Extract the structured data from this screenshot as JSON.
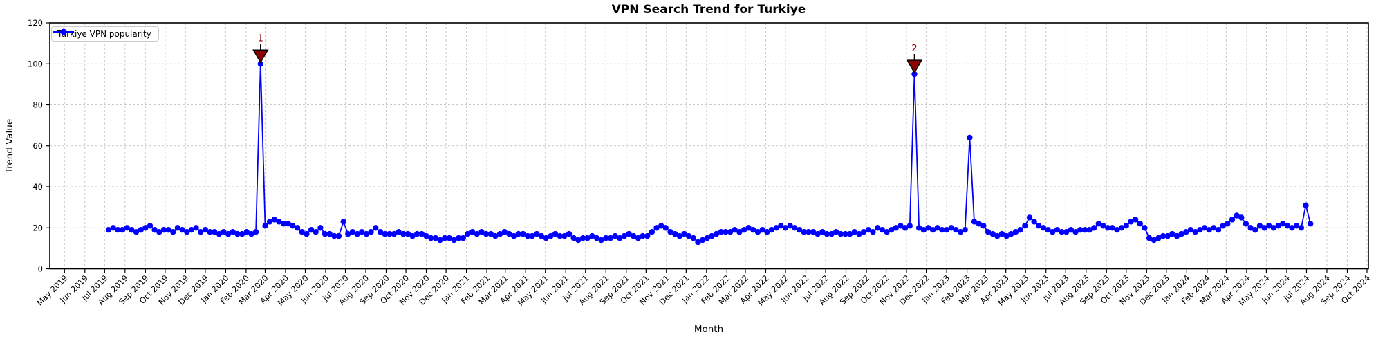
{
  "chart_data": {
    "type": "line",
    "title": "VPN Search Trend for Turkiye",
    "xlabel": "Month",
    "ylabel": "Trend Value",
    "ylim": [
      0,
      120
    ],
    "yticks": [
      0,
      20,
      40,
      60,
      80,
      100,
      120
    ],
    "grid": "dashed",
    "x_tick_labels": [
      "May 2019",
      "Jun 2019",
      "Jul 2019",
      "Aug 2019",
      "Sep 2019",
      "Oct 2019",
      "Nov 2019",
      "Dec 2019",
      "Jan 2020",
      "Feb 2020",
      "Mar 2020",
      "Apr 2020",
      "May 2020",
      "Jun 2020",
      "Jul 2020",
      "Aug 2020",
      "Sep 2020",
      "Oct 2020",
      "Nov 2020",
      "Dec 2020",
      "Jan 2021",
      "Feb 2021",
      "Mar 2021",
      "Apr 2021",
      "May 2021",
      "Jun 2021",
      "Jul 2021",
      "Aug 2021",
      "Sep 2021",
      "Oct 2021",
      "Nov 2021",
      "Dec 2021",
      "Jan 2022",
      "Feb 2022",
      "Mar 2022",
      "Apr 2022",
      "May 2022",
      "Jun 2022",
      "Jul 2022",
      "Aug 2022",
      "Sep 2022",
      "Oct 2022",
      "Nov 2022",
      "Dec 2022",
      "Jan 2023",
      "Feb 2023",
      "Mar 2023",
      "Apr 2023",
      "May 2023",
      "Jun 2023",
      "Jul 2023",
      "Aug 2023",
      "Sep 2023",
      "Oct 2023",
      "Nov 2023",
      "Dec 2023",
      "Jan 2024",
      "Feb 2024",
      "Mar 2024",
      "Apr 2024",
      "May 2024",
      "Jun 2024",
      "Jul 2024",
      "Aug 2024",
      "Sep 2024",
      "Oct 2024"
    ],
    "legend": {
      "position": "upper left",
      "entries": [
        {
          "label": "Turkiye VPN popularity",
          "color": "#0000ff",
          "marker": "circle"
        }
      ]
    },
    "series": [
      {
        "name": "Turkiye VPN popularity",
        "color": "#0000ff",
        "start_date": "2019-07-07",
        "interval_days": 7,
        "values": [
          19,
          20,
          19,
          19,
          20,
          19,
          18,
          19,
          20,
          21,
          19,
          18,
          19,
          19,
          18,
          20,
          19,
          18,
          19,
          20,
          18,
          19,
          18,
          18,
          17,
          18,
          17,
          18,
          17,
          17,
          18,
          17,
          18,
          100,
          21,
          23,
          24,
          23,
          22,
          22,
          21,
          20,
          18,
          17,
          19,
          18,
          20,
          17,
          17,
          16,
          16,
          23,
          17,
          18,
          17,
          18,
          17,
          18,
          20,
          18,
          17,
          17,
          17,
          18,
          17,
          17,
          16,
          17,
          17,
          16,
          15,
          15,
          14,
          15,
          15,
          14,
          15,
          15,
          17,
          18,
          17,
          18,
          17,
          17,
          16,
          17,
          18,
          17,
          16,
          17,
          17,
          16,
          16,
          17,
          16,
          15,
          16,
          17,
          16,
          16,
          17,
          15,
          14,
          15,
          15,
          16,
          15,
          14,
          15,
          15,
          16,
          15,
          16,
          17,
          16,
          15,
          16,
          16,
          18,
          20,
          21,
          20,
          18,
          17,
          16,
          17,
          16,
          15,
          13,
          14,
          15,
          16,
          17,
          18,
          18,
          18,
          19,
          18,
          19,
          20,
          19,
          18,
          19,
          18,
          19,
          20,
          21,
          20,
          21,
          20,
          19,
          18,
          18,
          18,
          17,
          18,
          17,
          17,
          18,
          17,
          17,
          17,
          18,
          17,
          18,
          19,
          18,
          20,
          19,
          18,
          19,
          20,
          21,
          20,
          21,
          95,
          20,
          19,
          20,
          19,
          20,
          19,
          19,
          20,
          19,
          18,
          19,
          64,
          23,
          22,
          21,
          18,
          17,
          16,
          17,
          16,
          17,
          18,
          19,
          21,
          25,
          23,
          21,
          20,
          19,
          18,
          19,
          18,
          18,
          19,
          18,
          19,
          19,
          19,
          20,
          22,
          21,
          20,
          20,
          19,
          20,
          21,
          23,
          24,
          22,
          20,
          15,
          14,
          15,
          16,
          16,
          17,
          16,
          17,
          18,
          19,
          18,
          19,
          20,
          19,
          20,
          19,
          21,
          22,
          24,
          26,
          25,
          22,
          20,
          19,
          21,
          20,
          21,
          20,
          21,
          22,
          21,
          20,
          21,
          20,
          31,
          22
        ]
      }
    ],
    "annotations": [
      {
        "label": "1",
        "date": "2020-02-23",
        "value": 100,
        "color": "#8b0000"
      },
      {
        "label": "2",
        "date": "2022-11-13",
        "value": 95,
        "color": "#8b0000"
      }
    ]
  },
  "colors": {
    "line": "#0000ff",
    "annotation": "#8b0000",
    "grid": "#c9c9c9",
    "spine": "#000000",
    "background": "#ffffff"
  }
}
